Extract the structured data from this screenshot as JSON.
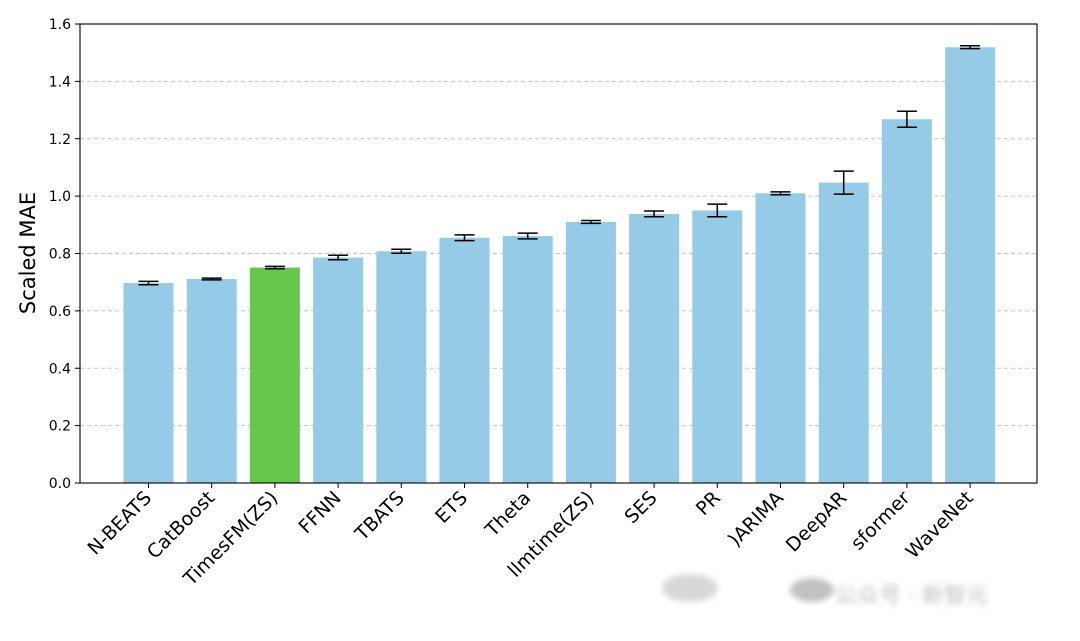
{
  "chart_data": {
    "type": "bar",
    "title": "",
    "xlabel": "",
    "ylabel": "Scaled MAE",
    "ylim": [
      0,
      1.6
    ],
    "yticks": [
      0.0,
      0.2,
      0.4,
      0.6,
      0.8,
      1.0,
      1.2,
      1.4,
      1.6
    ],
    "ytick_labels": [
      "0.0",
      "0.2",
      "0.4",
      "0.6",
      "0.8",
      "1.0",
      "1.2",
      "1.4",
      "1.6"
    ],
    "grid": "y-dashed",
    "categories": [
      "N-BEATS",
      "CatBoost",
      "TimesFM(ZS)",
      "FFNN",
      "TBATS",
      "ETS",
      "Theta",
      "llmtime(ZS)",
      "SES",
      "PR",
      "ARIMA",
      "DeepAR",
      "Informer",
      "WaveNet"
    ],
    "category_labels": [
      "N-BEATS",
      "CatBoost",
      "TimesFM(ZS)",
      "FFNN",
      "TBATS",
      "ETS",
      "Theta",
      "llmtime(ZS)",
      "SES",
      "PR",
      ")ARIMA",
      "DeepAR",
      "sformer",
      "WaveNet"
    ],
    "values": [
      0.697,
      0.711,
      0.751,
      0.786,
      0.808,
      0.855,
      0.861,
      0.91,
      0.938,
      0.95,
      1.01,
      1.047,
      1.268,
      1.519
    ],
    "errors": [
      0.006,
      0.003,
      0.004,
      0.008,
      0.007,
      0.01,
      0.01,
      0.005,
      0.01,
      0.022,
      0.005,
      0.04,
      0.028,
      0.005
    ],
    "colors": [
      "#95cbe6",
      "#95cbe6",
      "#65c84c",
      "#95cbe6",
      "#95cbe6",
      "#95cbe6",
      "#95cbe6",
      "#95cbe6",
      "#95cbe6",
      "#95cbe6",
      "#95cbe6",
      "#95cbe6",
      "#95cbe6",
      "#95cbe6"
    ],
    "highlight_category": "TimesFM(ZS)",
    "highlight_color": "#65c84c",
    "bar_color": "#95cbe6",
    "watermark": "公众号 · 新智元"
  }
}
